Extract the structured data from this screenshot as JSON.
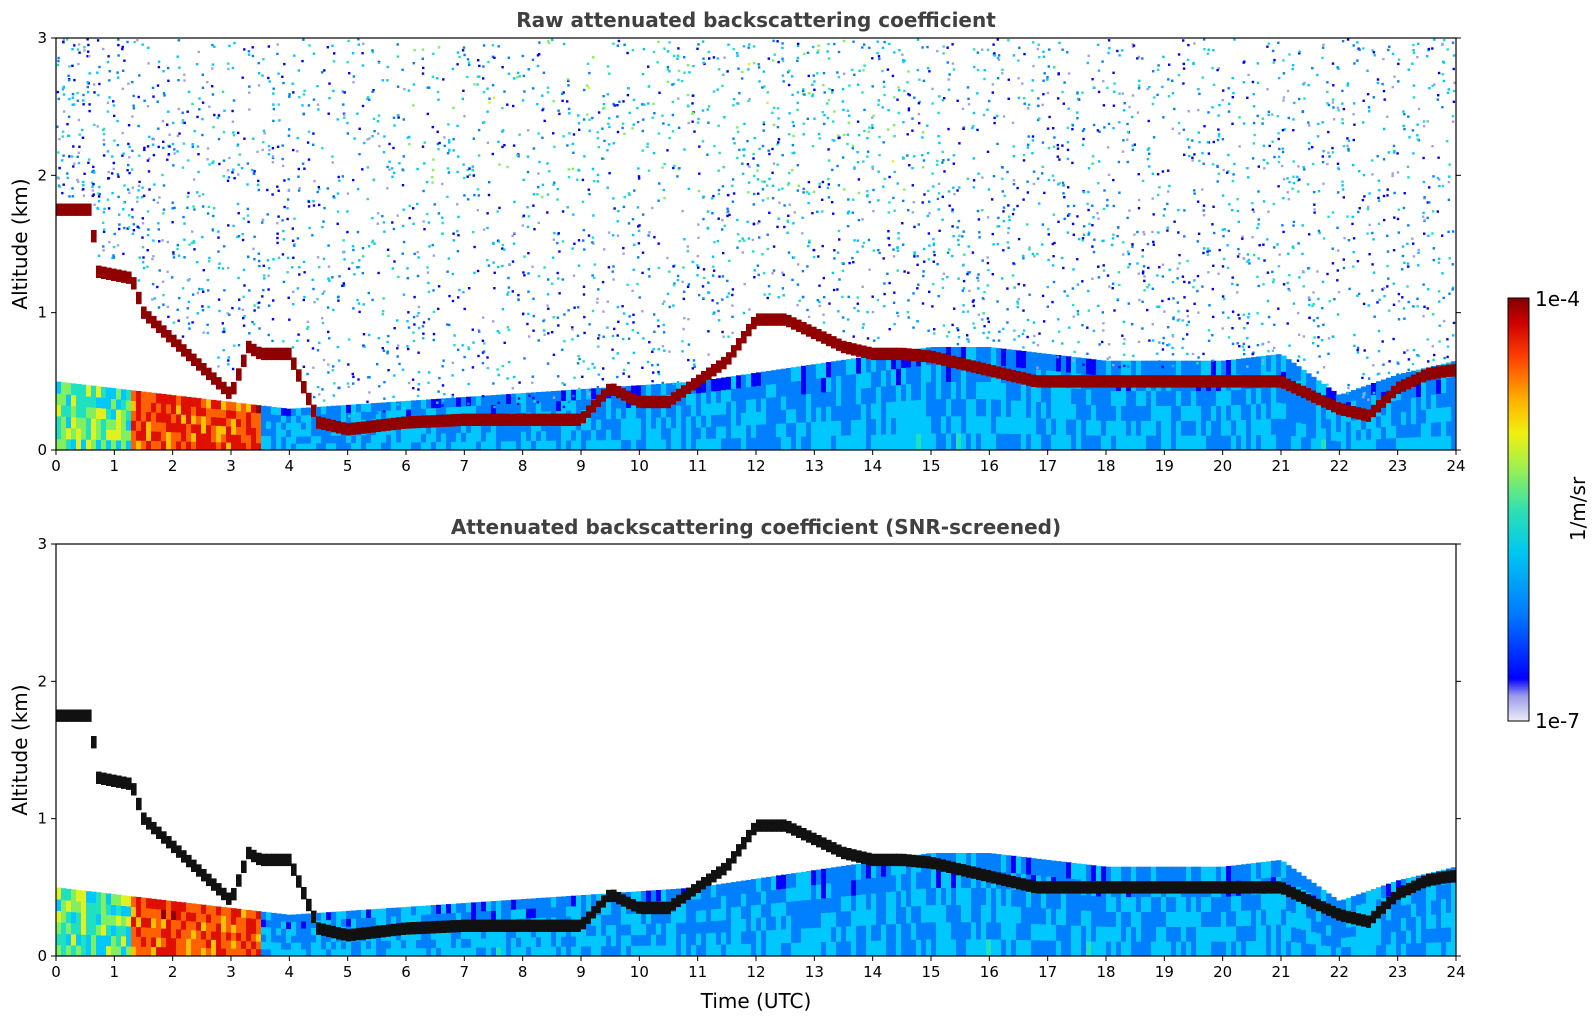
{
  "chart_data": [
    {
      "type": "heatmap",
      "title": "Raw attenuated backscattering coefficient",
      "xlabel": "",
      "ylabel": "Altitude (km)",
      "xlim": [
        0,
        24
      ],
      "ylim": [
        0,
        3
      ],
      "x_ticks": [
        "0",
        "1",
        "2",
        "3",
        "4",
        "5",
        "6",
        "7",
        "8",
        "9",
        "10",
        "11",
        "12",
        "13",
        "14",
        "15",
        "16",
        "17",
        "18",
        "19",
        "20",
        "21",
        "22",
        "23",
        "24"
      ],
      "y_ticks": [
        "0",
        "1",
        "2",
        "3"
      ],
      "screened": false,
      "cloud_layer": {
        "time_h": [
          0,
          0.6,
          0.7,
          1.3,
          1.5,
          2.0,
          2.5,
          3.0,
          3.3,
          3.5,
          4.0,
          4.5,
          5.0,
          6.0,
          7.0,
          8.0,
          9.0,
          9.5,
          10.0,
          10.5,
          11.0,
          11.5,
          12.0,
          12.5,
          13.0,
          13.5,
          14.0,
          14.5,
          15.0,
          16.8,
          17.8,
          21.0,
          21.5,
          22.0,
          22.5,
          23.0,
          23.5,
          23.9
        ],
        "height_km": [
          1.75,
          1.75,
          1.3,
          1.25,
          1.0,
          0.8,
          0.6,
          0.4,
          0.75,
          0.7,
          0.7,
          0.2,
          0.15,
          0.2,
          0.22,
          0.22,
          0.22,
          0.45,
          0.35,
          0.35,
          0.5,
          0.65,
          0.95,
          0.95,
          0.85,
          0.75,
          0.7,
          0.7,
          0.68,
          0.5,
          0.5,
          0.5,
          0.4,
          0.3,
          0.25,
          0.45,
          0.55,
          0.58
        ]
      },
      "boundary_layer_top_km": {
        "time_h": [
          0,
          4,
          11,
          15,
          16,
          18,
          20,
          21,
          22,
          23,
          24
        ],
        "height_km": [
          0.5,
          0.3,
          0.5,
          0.75,
          0.75,
          0.65,
          0.65,
          0.7,
          0.4,
          0.55,
          0.65
        ]
      }
    },
    {
      "type": "heatmap",
      "title": "Attenuated backscattering coefficient (SNR-screened)",
      "xlabel": "Time (UTC)",
      "ylabel": "Altitude (km)",
      "xlim": [
        0,
        24
      ],
      "ylim": [
        0,
        3
      ],
      "x_ticks": [
        "0",
        "1",
        "2",
        "3",
        "4",
        "5",
        "6",
        "7",
        "8",
        "9",
        "10",
        "11",
        "12",
        "13",
        "14",
        "15",
        "16",
        "17",
        "18",
        "19",
        "20",
        "21",
        "22",
        "23",
        "24"
      ],
      "y_ticks": [
        "0",
        "1",
        "2",
        "3"
      ],
      "screened": true
    }
  ],
  "colorbar": {
    "label": "1/m/sr",
    "max_label": "1e-4",
    "min_label": "1e-7",
    "scale": "log",
    "range": [
      1e-07,
      0.0001
    ],
    "colormap": [
      "#e6e6f5",
      "#a0a0e6",
      "#0000ff",
      "#0080ff",
      "#00c8ff",
      "#20e0c0",
      "#80f060",
      "#e0f020",
      "#ffc000",
      "#ff6000",
      "#e01000",
      "#900000"
    ]
  }
}
